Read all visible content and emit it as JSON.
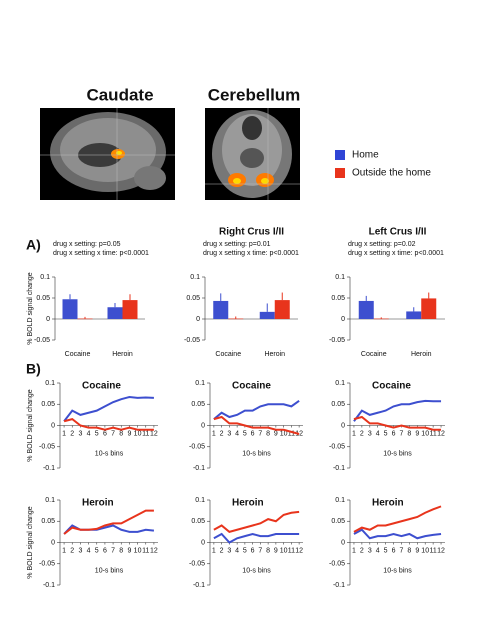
{
  "figure": {
    "image_titles": [
      "Caudate",
      "Cerebellum"
    ],
    "panel_labels": [
      "A)",
      "B)"
    ]
  },
  "legend": {
    "entries": [
      {
        "name": "Home",
        "color": "#2f45d6"
      },
      {
        "name": "Outside the home",
        "color": "#e8341c"
      }
    ]
  },
  "chart_data": [
    {
      "type": "bar",
      "annotations": [
        "drug x setting: p=0.05",
        "drug x setting x time: p<0.0001"
      ],
      "ylabel": "% BOLD signal change",
      "categories": [
        "Cocaine",
        "Heroin"
      ],
      "series": [
        {
          "color": "#3d4fcf",
          "values": [
            0.047,
            0.028
          ],
          "errors": [
            0.012,
            0.01
          ]
        },
        {
          "color": "#e8341c",
          "values": [
            0.001,
            0.045
          ],
          "errors": [
            0.004,
            0.014
          ]
        }
      ],
      "ylim": [
        -0.05,
        0.1
      ],
      "yticks": [
        -0.05,
        0,
        0.05,
        0.1
      ]
    },
    {
      "type": "bar",
      "title": "Right Crus I/II",
      "annotations": [
        "drug x setting: p=0.01",
        "drug x setting x time: p<0.0001"
      ],
      "categories": [
        "Cocaine",
        "Heroin"
      ],
      "series": [
        {
          "color": "#3d4fcf",
          "values": [
            0.043,
            0.017
          ],
          "errors": [
            0.018,
            0.02
          ]
        },
        {
          "color": "#e8341c",
          "values": [
            0.001,
            0.045
          ],
          "errors": [
            0.005,
            0.018
          ]
        }
      ],
      "ylim": [
        -0.05,
        0.1
      ],
      "yticks": [
        -0.05,
        0,
        0.05,
        0.1
      ]
    },
    {
      "type": "bar",
      "title": "Left Crus I/II",
      "annotations": [
        "drug x setting: p=0.02",
        "drug x setting x time: p<0.0001"
      ],
      "categories": [
        "Cocaine",
        "Heroin"
      ],
      "series": [
        {
          "color": "#3d4fcf",
          "values": [
            0.043,
            0.018
          ],
          "errors": [
            0.012,
            0.01
          ]
        },
        {
          "color": "#e8341c",
          "values": [
            0.001,
            0.049
          ],
          "errors": [
            0.003,
            0.014
          ]
        }
      ],
      "ylim": [
        -0.05,
        0.1
      ],
      "yticks": [
        -0.05,
        0,
        0.05,
        0.1
      ]
    },
    {
      "type": "line",
      "title": "Cocaine",
      "ylabel": "% BOLD signal change",
      "xlabel": "10-s bins",
      "x": [
        1,
        2,
        3,
        4,
        5,
        6,
        7,
        8,
        9,
        10,
        11,
        12
      ],
      "series": [
        {
          "color": "#3d4fcf",
          "values": [
            0.01,
            0.035,
            0.025,
            0.03,
            0.035,
            0.045,
            0.055,
            0.062,
            0.067,
            0.065,
            0.066,
            0.065
          ]
        },
        {
          "color": "#e8341c",
          "values": [
            0.01,
            0.015,
            0.0,
            -0.005,
            -0.005,
            -0.01,
            -0.005,
            -0.01,
            -0.005,
            -0.01,
            -0.01,
            -0.01
          ]
        }
      ],
      "xlim": [
        0.5,
        12.5
      ],
      "xticks": [
        1,
        2,
        3,
        4,
        5,
        6,
        7,
        8,
        9,
        10,
        11,
        12
      ],
      "ylim": [
        -0.1,
        0.1
      ],
      "yticks": [
        -0.1,
        -0.05,
        0,
        0.05,
        0.1
      ]
    },
    {
      "type": "line",
      "title": "Cocaine",
      "xlabel": "10-s bins",
      "x": [
        1,
        2,
        3,
        4,
        5,
        6,
        7,
        8,
        9,
        10,
        11,
        12
      ],
      "series": [
        {
          "color": "#3d4fcf",
          "values": [
            0.015,
            0.03,
            0.02,
            0.025,
            0.035,
            0.035,
            0.045,
            0.05,
            0.05,
            0.05,
            0.045,
            0.058
          ]
        },
        {
          "color": "#e8341c",
          "values": [
            0.015,
            0.02,
            0.005,
            0.005,
            0.0,
            -0.005,
            -0.005,
            -0.005,
            -0.01,
            -0.01,
            -0.015,
            -0.02
          ]
        }
      ],
      "xlim": [
        0.5,
        12.5
      ],
      "xticks": [
        1,
        2,
        3,
        4,
        5,
        6,
        7,
        8,
        9,
        10,
        11,
        12
      ],
      "ylim": [
        -0.1,
        0.1
      ],
      "yticks": [
        -0.1,
        -0.05,
        0,
        0.05,
        0.1
      ]
    },
    {
      "type": "line",
      "title": "Cocaine",
      "xlabel": "10-s bins",
      "x": [
        1,
        2,
        3,
        4,
        5,
        6,
        7,
        8,
        9,
        10,
        11,
        12
      ],
      "series": [
        {
          "color": "#3d4fcf",
          "values": [
            0.01,
            0.035,
            0.025,
            0.03,
            0.035,
            0.045,
            0.05,
            0.05,
            0.055,
            0.058,
            0.057,
            0.057
          ]
        },
        {
          "color": "#e8341c",
          "values": [
            0.015,
            0.02,
            0.005,
            0.005,
            0.0,
            -0.005,
            0.0,
            -0.005,
            -0.005,
            -0.005,
            -0.01,
            -0.01
          ]
        }
      ],
      "xlim": [
        0.5,
        12.5
      ],
      "xticks": [
        1,
        2,
        3,
        4,
        5,
        6,
        7,
        8,
        9,
        10,
        11,
        12
      ],
      "ylim": [
        -0.1,
        0.1
      ],
      "yticks": [
        -0.1,
        -0.05,
        0,
        0.05,
        0.1
      ]
    },
    {
      "type": "line",
      "title": "Heroin",
      "ylabel": "% BOLD signal change",
      "xlabel": "10-s bins",
      "x": [
        1,
        2,
        3,
        4,
        5,
        6,
        7,
        8,
        9,
        10,
        11,
        12
      ],
      "series": [
        {
          "color": "#3d4fcf",
          "values": [
            0.02,
            0.04,
            0.03,
            0.03,
            0.03,
            0.035,
            0.04,
            0.03,
            0.025,
            0.025,
            0.03,
            0.028
          ]
        },
        {
          "color": "#e8341c",
          "values": [
            0.02,
            0.035,
            0.03,
            0.03,
            0.032,
            0.04,
            0.045,
            0.045,
            0.055,
            0.065,
            0.075,
            0.075
          ]
        }
      ],
      "xlim": [
        0.5,
        12.5
      ],
      "xticks": [
        1,
        2,
        3,
        4,
        5,
        6,
        7,
        8,
        9,
        10,
        11,
        12
      ],
      "ylim": [
        -0.1,
        0.1
      ],
      "yticks": [
        -0.1,
        -0.05,
        0,
        0.05,
        0.1
      ]
    },
    {
      "type": "line",
      "title": "Heroin",
      "xlabel": "10-s bins",
      "x": [
        1,
        2,
        3,
        4,
        5,
        6,
        7,
        8,
        9,
        10,
        11,
        12
      ],
      "series": [
        {
          "color": "#3d4fcf",
          "values": [
            0.01,
            0.02,
            0.0,
            0.01,
            0.015,
            0.02,
            0.015,
            0.015,
            0.02,
            0.02,
            0.02,
            0.02
          ]
        },
        {
          "color": "#e8341c",
          "values": [
            0.03,
            0.04,
            0.025,
            0.03,
            0.035,
            0.04,
            0.045,
            0.055,
            0.05,
            0.065,
            0.07,
            0.072
          ]
        }
      ],
      "xlim": [
        0.5,
        12.5
      ],
      "xticks": [
        1,
        2,
        3,
        4,
        5,
        6,
        7,
        8,
        9,
        10,
        11,
        12
      ],
      "ylim": [
        -0.1,
        0.1
      ],
      "yticks": [
        -0.1,
        -0.05,
        0,
        0.05,
        0.1
      ]
    },
    {
      "type": "line",
      "title": "Heroin",
      "xlabel": "10-s bins",
      "x": [
        1,
        2,
        3,
        4,
        5,
        6,
        7,
        8,
        9,
        10,
        11,
        12
      ],
      "series": [
        {
          "color": "#3d4fcf",
          "values": [
            0.02,
            0.03,
            0.01,
            0.015,
            0.015,
            0.02,
            0.015,
            0.02,
            0.01,
            0.015,
            0.018,
            0.02
          ]
        },
        {
          "color": "#e8341c",
          "values": [
            0.025,
            0.035,
            0.03,
            0.04,
            0.04,
            0.045,
            0.05,
            0.055,
            0.06,
            0.07,
            0.078,
            0.085
          ]
        }
      ],
      "xlim": [
        0.5,
        12.5
      ],
      "xticks": [
        1,
        2,
        3,
        4,
        5,
        6,
        7,
        8,
        9,
        10,
        11,
        12
      ],
      "ylim": [
        -0.1,
        0.1
      ],
      "yticks": [
        -0.1,
        -0.05,
        0,
        0.05,
        0.1
      ]
    }
  ]
}
